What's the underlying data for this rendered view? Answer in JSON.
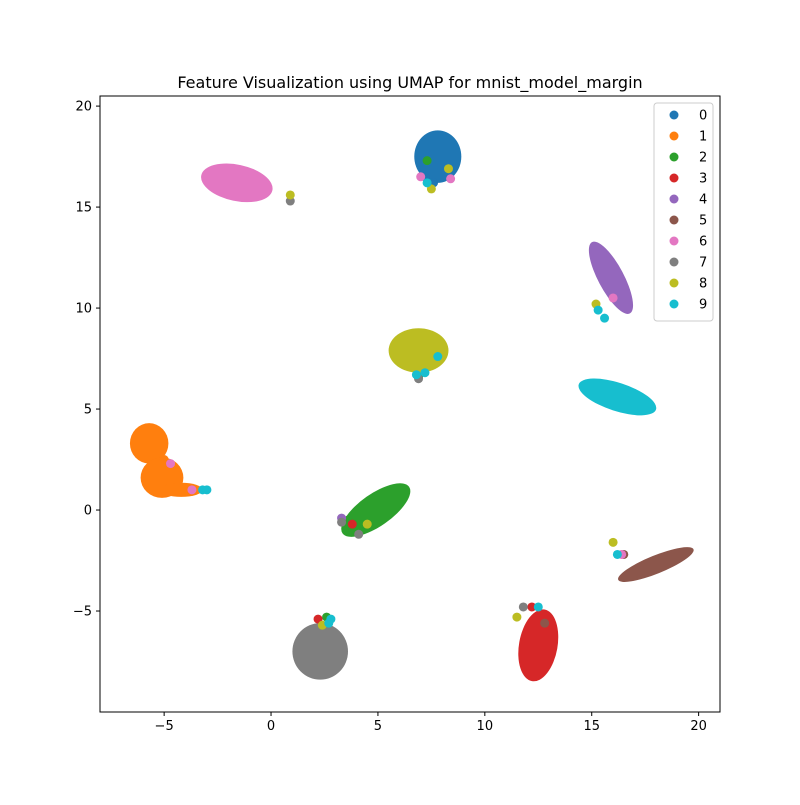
{
  "chart_data": {
    "type": "scatter",
    "title": "Feature Visualization using UMAP for mnist_model_margin",
    "xlabel": "",
    "ylabel": "",
    "xlim": [
      -8,
      21
    ],
    "ylim": [
      -10,
      20.5
    ],
    "xticks": [
      -5,
      0,
      5,
      10,
      15,
      20
    ],
    "yticks": [
      -5,
      0,
      5,
      10,
      15,
      20
    ],
    "xtick_labels": [
      "−5",
      "0",
      "5",
      "10",
      "15",
      "20"
    ],
    "ytick_labels": [
      "−5",
      "0",
      "5",
      "10",
      "15",
      "20"
    ],
    "grid": false,
    "legend_position": "top-right",
    "colors": [
      "#1f77b4",
      "#ff7f0e",
      "#2ca02c",
      "#d62728",
      "#9467bd",
      "#8c564b",
      "#e377c2",
      "#7f7f7f",
      "#bcbd22",
      "#17becf"
    ],
    "series": [
      {
        "name": "0",
        "color": "#1f77b4",
        "clusters": [
          {
            "cx": 7.8,
            "cy": 17.5,
            "rx": 1.1,
            "ry": 1.3,
            "rot": 0
          }
        ],
        "points": [
          [
            7.2,
            16.5
          ],
          [
            7.6,
            16.2
          ]
        ]
      },
      {
        "name": "1",
        "color": "#ff7f0e",
        "clusters": [
          {
            "cx": -5.7,
            "cy": 3.3,
            "rx": 0.9,
            "ry": 1.0,
            "rot": 0
          },
          {
            "cx": -5.1,
            "cy": 1.6,
            "rx": 1.0,
            "ry": 1.0,
            "rot": 0
          },
          {
            "cx": -4.2,
            "cy": 1.0,
            "rx": 1.0,
            "ry": 0.35,
            "rot": 0
          }
        ],
        "points": [
          [
            -3.6,
            1.0
          ],
          [
            -5.0,
            2.5
          ]
        ]
      },
      {
        "name": "2",
        "color": "#2ca02c",
        "clusters": [
          {
            "cx": 4.9,
            "cy": 0.0,
            "rx": 1.9,
            "ry": 0.8,
            "rot": 35
          }
        ],
        "points": [
          [
            7.3,
            17.3
          ],
          [
            3.6,
            -0.5
          ],
          [
            6.9,
            6.6
          ],
          [
            2.6,
            -5.3
          ]
        ]
      },
      {
        "name": "3",
        "color": "#d62728",
        "clusters": [
          {
            "cx": 12.5,
            "cy": -6.7,
            "rx": 0.9,
            "ry": 1.8,
            "rot": -10
          }
        ],
        "points": [
          [
            3.8,
            -0.7
          ],
          [
            2.2,
            -5.4
          ],
          [
            12.2,
            -4.8
          ]
        ]
      },
      {
        "name": "4",
        "color": "#9467bd",
        "clusters": [
          {
            "cx": 15.9,
            "cy": 11.5,
            "rx": 0.6,
            "ry": 2.0,
            "rot": 28
          }
        ],
        "points": [
          [
            3.3,
            -0.4
          ]
        ]
      },
      {
        "name": "5",
        "color": "#8c564b",
        "clusters": [
          {
            "cx": 18.0,
            "cy": -2.7,
            "rx": 1.9,
            "ry": 0.45,
            "rot": 22
          }
        ],
        "points": [
          [
            12.8,
            -5.6
          ],
          [
            16.5,
            -2.2
          ]
        ]
      },
      {
        "name": "6",
        "color": "#e377c2",
        "clusters": [
          {
            "cx": -1.6,
            "cy": 16.2,
            "rx": 1.7,
            "ry": 0.9,
            "rot": -12
          }
        ],
        "points": [
          [
            -4.7,
            2.3
          ],
          [
            -3.7,
            1.0
          ],
          [
            7.0,
            16.5
          ],
          [
            8.4,
            16.4
          ],
          [
            16.0,
            10.5
          ],
          [
            16.4,
            -2.2
          ]
        ]
      },
      {
        "name": "7",
        "color": "#7f7f7f",
        "clusters": [
          {
            "cx": 2.3,
            "cy": -7.0,
            "rx": 1.3,
            "ry": 1.4,
            "rot": 0
          }
        ],
        "points": [
          [
            4.1,
            -1.2
          ],
          [
            3.3,
            -0.6
          ],
          [
            11.8,
            -4.8
          ],
          [
            6.9,
            6.5
          ],
          [
            0.9,
            15.3
          ]
        ]
      },
      {
        "name": "8",
        "color": "#bcbd22",
        "clusters": [
          {
            "cx": 6.9,
            "cy": 7.9,
            "rx": 1.4,
            "ry": 1.1,
            "rot": 0
          }
        ],
        "points": [
          [
            7.5,
            15.9
          ],
          [
            8.3,
            16.9
          ],
          [
            4.5,
            -0.7
          ],
          [
            2.4,
            -5.7
          ],
          [
            11.5,
            -5.3
          ],
          [
            16.0,
            -1.6
          ],
          [
            15.2,
            10.2
          ],
          [
            0.9,
            15.6
          ]
        ]
      },
      {
        "name": "9",
        "color": "#17becf",
        "clusters": [
          {
            "cx": 16.2,
            "cy": 5.6,
            "rx": 1.9,
            "ry": 0.7,
            "rot": -18
          }
        ],
        "points": [
          [
            -3.2,
            1.0
          ],
          [
            -3.0,
            1.0
          ],
          [
            7.3,
            16.2
          ],
          [
            7.8,
            7.6
          ],
          [
            7.2,
            6.8
          ],
          [
            6.8,
            6.7
          ],
          [
            15.3,
            9.9
          ],
          [
            15.6,
            9.5
          ],
          [
            16.2,
            -2.2
          ],
          [
            2.7,
            -5.6
          ],
          [
            2.8,
            -5.4
          ],
          [
            12.5,
            -4.8
          ]
        ]
      }
    ]
  }
}
